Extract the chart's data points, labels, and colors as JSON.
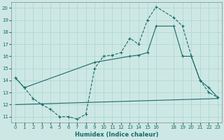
{
  "xlabel": "Humidex (Indice chaleur)",
  "xlim": [
    -0.5,
    23.5
  ],
  "ylim": [
    10.5,
    20.5
  ],
  "yticks": [
    11,
    12,
    13,
    14,
    15,
    16,
    17,
    18,
    19,
    20
  ],
  "xticks": [
    0,
    1,
    2,
    3,
    4,
    5,
    6,
    7,
    8,
    9,
    10,
    11,
    12,
    13,
    14,
    15,
    16,
    18,
    19,
    20,
    21,
    22,
    23
  ],
  "bg_color": "#cde8e4",
  "grid_color": "#b0d8d0",
  "line_color": "#1a6b6b",
  "line1_x": [
    0,
    1,
    2,
    3,
    4,
    5,
    6,
    7,
    8,
    9,
    10,
    11,
    12,
    13,
    14,
    15,
    16,
    18,
    19,
    20,
    21,
    22,
    23
  ],
  "line1_y": [
    14.2,
    13.4,
    12.5,
    12.0,
    11.6,
    11.0,
    11.0,
    10.8,
    11.2,
    15.0,
    16.0,
    16.1,
    16.3,
    17.5,
    17.0,
    19.0,
    20.1,
    19.2,
    18.5,
    16.0,
    14.0,
    13.0,
    12.6
  ],
  "line2_x": [
    0,
    23
  ],
  "line2_y": [
    12.0,
    12.5
  ],
  "line3_x": [
    0,
    1,
    9,
    13,
    14,
    15,
    16,
    18,
    19,
    20,
    21,
    22,
    23
  ],
  "line3_y": [
    14.2,
    13.4,
    15.5,
    16.0,
    16.1,
    16.3,
    18.5,
    18.5,
    16.0,
    16.0,
    14.0,
    13.4,
    12.6
  ]
}
